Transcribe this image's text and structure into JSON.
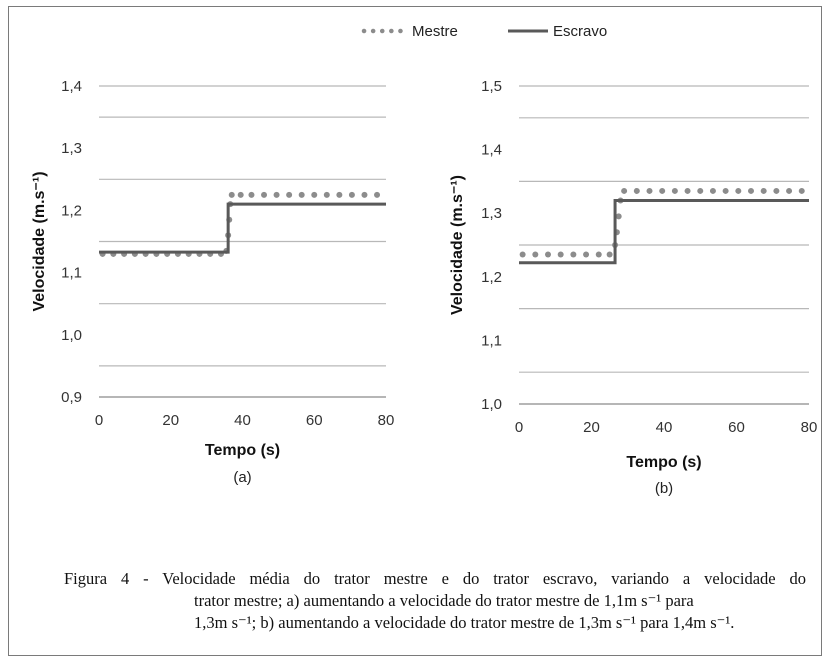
{
  "legend": [
    {
      "name": "Mestre",
      "style": "dotted",
      "color": "#8c8c8c"
    },
    {
      "name": "Escravo",
      "style": "solid",
      "color": "#595959"
    }
  ],
  "chart_data": [
    {
      "type": "line",
      "panel_label": "(a)",
      "xlabel": "Tempo (s)",
      "ylabel": "Velocidade (m.s⁻¹)",
      "xlim": [
        0,
        80
      ],
      "ylim": [
        0.9,
        1.4
      ],
      "xticks": [
        0,
        20,
        40,
        60,
        80
      ],
      "xtick_labels": [
        "0",
        "20",
        "40",
        "60",
        "80"
      ],
      "yticks": [
        0.9,
        1.0,
        1.1,
        1.2,
        1.3,
        1.4
      ],
      "ytick_labels": [
        "0,9",
        "1,0",
        "1,1",
        "1,2",
        "1,3",
        "1,4"
      ],
      "gridlines_y": [
        0.95,
        1.05,
        1.15,
        1.25,
        1.35,
        1.4
      ],
      "series": [
        {
          "name": "Mestre",
          "marker": "dots",
          "x": [
            1,
            4,
            7,
            10,
            13,
            16,
            19,
            22,
            25,
            28,
            31,
            34,
            35.5,
            36,
            36.3,
            36.6,
            37,
            39.5,
            42.5,
            46,
            49.5,
            53,
            56.5,
            60,
            63.5,
            67,
            70.5,
            74,
            77.5
          ],
          "y": [
            1.13,
            1.13,
            1.13,
            1.13,
            1.13,
            1.13,
            1.13,
            1.13,
            1.13,
            1.13,
            1.13,
            1.13,
            1.135,
            1.16,
            1.185,
            1.21,
            1.225,
            1.225,
            1.225,
            1.225,
            1.225,
            1.225,
            1.225,
            1.225,
            1.225,
            1.225,
            1.225,
            1.225,
            1.225
          ]
        },
        {
          "name": "Escravo",
          "marker": "line",
          "x": [
            0,
            36,
            36,
            80
          ],
          "y": [
            1.133,
            1.133,
            1.21,
            1.21
          ]
        }
      ]
    },
    {
      "type": "line",
      "panel_label": "(b)",
      "xlabel": "Tempo (s)",
      "ylabel": "Velocidade (m.s⁻¹)",
      "xlim": [
        0,
        80
      ],
      "ylim": [
        1.0,
        1.5
      ],
      "xticks": [
        0,
        20,
        40,
        60,
        80
      ],
      "xtick_labels": [
        "0",
        "20",
        "40",
        "60",
        "80"
      ],
      "yticks": [
        1.0,
        1.1,
        1.2,
        1.3,
        1.4,
        1.5
      ],
      "ytick_labels": [
        "1,0",
        "1,1",
        "1,2",
        "1,3",
        "1,4",
        "1,5"
      ],
      "gridlines_y": [
        1.05,
        1.15,
        1.25,
        1.35,
        1.45,
        1.5
      ],
      "series": [
        {
          "name": "Mestre",
          "marker": "dots",
          "x": [
            1,
            4.5,
            8,
            11.5,
            15,
            18.5,
            22,
            25,
            26.5,
            27,
            27.5,
            28,
            29,
            32.5,
            36,
            39.5,
            43,
            46.5,
            50,
            53.5,
            57,
            60.5,
            64,
            67.5,
            71,
            74.5,
            78
          ],
          "y": [
            1.235,
            1.235,
            1.235,
            1.235,
            1.235,
            1.235,
            1.235,
            1.235,
            1.25,
            1.27,
            1.295,
            1.32,
            1.335,
            1.335,
            1.335,
            1.335,
            1.335,
            1.335,
            1.335,
            1.335,
            1.335,
            1.335,
            1.335,
            1.335,
            1.335,
            1.335,
            1.335
          ]
        },
        {
          "name": "Escravo",
          "marker": "line",
          "x": [
            0,
            26.5,
            26.5,
            80
          ],
          "y": [
            1.222,
            1.222,
            1.32,
            1.32
          ]
        }
      ]
    }
  ],
  "caption": {
    "line1": "Figura 4 - Velocidade média do trator mestre e do trator escravo, variando a velocidade do",
    "line2": "trator mestre; a) aumentando a velocidade do trator mestre de 1,1m s⁻¹ para",
    "line3": "1,3m s⁻¹; b) aumentando a velocidade do trator mestre de 1,3m s⁻¹ para 1,4m s⁻¹."
  },
  "colors": {
    "mestre": "#8c8c8c",
    "escravo": "#595959",
    "grid": "#b8b8b8",
    "axis_text": "#333333",
    "frame": "#7a7a7a"
  }
}
